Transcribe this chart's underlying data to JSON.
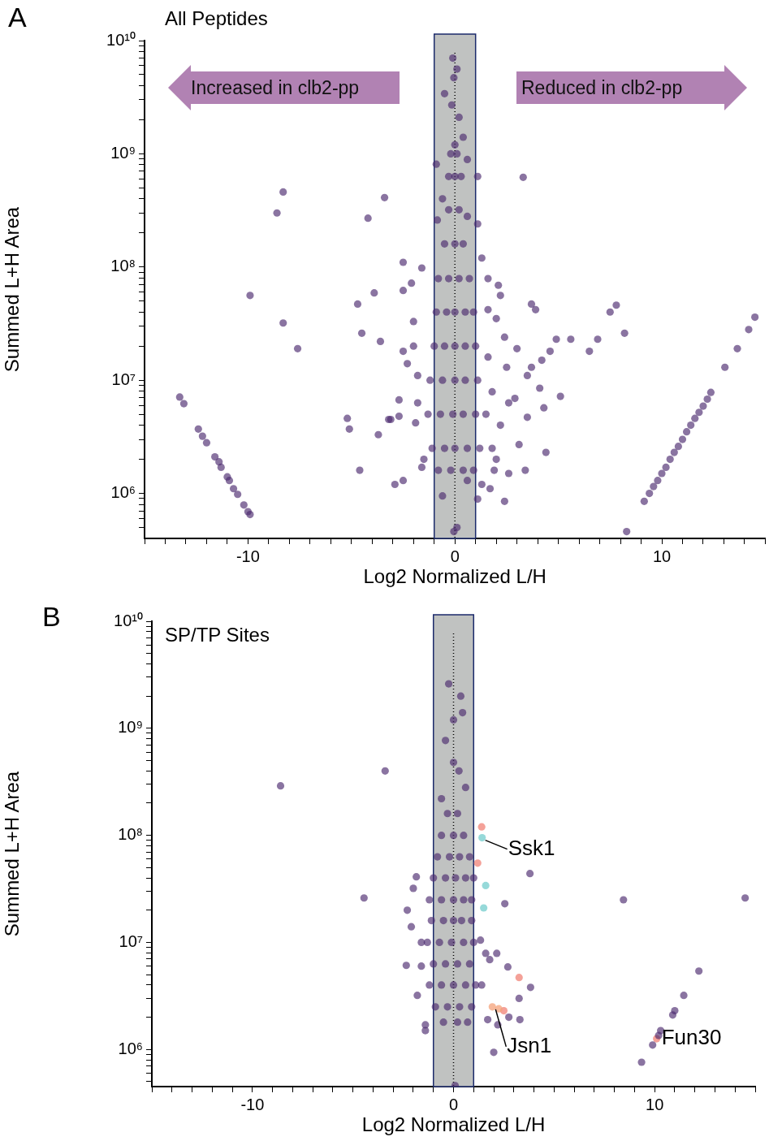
{
  "chart_data": [
    {
      "type": "scatter",
      "title": "All Peptides",
      "xlabel": "Log2 Normalized L/H",
      "ylabel": "Summed L+H Area",
      "log": "y",
      "marker": "circle",
      "annotations": [
        "A",
        "Increased in clb2-pp",
        "Reduced in clb2-pp"
      ],
      "xlim": [
        -15,
        15
      ],
      "ylim": [
        400000,
        10000000000
      ],
      "xticks": [
        {
          "value": -15,
          "label": null
        },
        {
          "value": -14,
          "label": null
        },
        {
          "value": -13,
          "label": null
        },
        {
          "value": -12,
          "label": null
        },
        {
          "value": -11,
          "label": null
        },
        -10,
        {
          "value": -9,
          "label": null
        },
        {
          "value": -8,
          "label": null
        },
        {
          "value": -7,
          "label": null
        },
        {
          "value": -6,
          "label": null
        },
        {
          "value": -5,
          "label": null
        },
        {
          "value": -4,
          "label": null
        },
        {
          "value": -3,
          "label": null
        },
        {
          "value": -2,
          "label": null
        },
        {
          "value": -1,
          "label": null
        },
        0,
        {
          "value": 1,
          "label": null
        },
        {
          "value": 2,
          "label": null
        },
        {
          "value": 3,
          "label": null
        },
        {
          "value": 4,
          "label": null
        },
        {
          "value": 5,
          "label": null
        },
        {
          "value": 6,
          "label": null
        },
        {
          "value": 7,
          "label": null
        },
        {
          "value": 8,
          "label": null
        },
        {
          "value": 9,
          "label": null
        },
        10,
        {
          "value": 11,
          "label": null
        },
        {
          "value": 12,
          "label": null
        },
        {
          "value": 13,
          "label": null
        },
        {
          "value": 14,
          "label": null
        },
        {
          "value": 15,
          "label": null
        }
      ],
      "yticks": [
        {
          "value": 500000.0,
          "label": null
        },
        {
          "value": 600000.0,
          "label": null
        },
        {
          "value": 700000.0,
          "label": null
        },
        {
          "value": 800000.0,
          "label": null
        },
        {
          "value": 900000.0,
          "label": null
        },
        {
          "value": 1000000.0,
          "label": "10⁶"
        },
        {
          "value": 2000000.0,
          "label": null
        },
        {
          "value": 3000000.0,
          "label": null
        },
        {
          "value": 4000000.0,
          "label": null
        },
        {
          "value": 5000000.0,
          "label": null
        },
        {
          "value": 6000000.0,
          "label": null
        },
        {
          "value": 7000000.0,
          "label": null
        },
        {
          "value": 8000000.0,
          "label": null
        },
        {
          "value": 9000000.0,
          "label": null
        },
        {
          "value": 10000000.0,
          "label": "10⁷"
        },
        {
          "value": 20000000.0,
          "label": null
        },
        {
          "value": 30000000.0,
          "label": null
        },
        {
          "value": 40000000.0,
          "label": null
        },
        {
          "value": 50000000.0,
          "label": null
        },
        {
          "value": 60000000.0,
          "label": null
        },
        {
          "value": 70000000.0,
          "label": null
        },
        {
          "value": 80000000.0,
          "label": null
        },
        {
          "value": 90000000.0,
          "label": null
        },
        {
          "value": 100000000.0,
          "label": "10⁸"
        },
        {
          "value": 200000000.0,
          "label": null
        },
        {
          "value": 300000000.0,
          "label": null
        },
        {
          "value": 400000000.0,
          "label": null
        },
        {
          "value": 500000000.0,
          "label": null
        },
        {
          "value": 600000000.0,
          "label": null
        },
        {
          "value": 700000000.0,
          "label": null
        },
        {
          "value": 800000000.0,
          "label": null
        },
        {
          "value": 900000000.0,
          "label": null
        },
        {
          "value": 1000000000.0,
          "label": "10⁹"
        },
        {
          "value": 2000000000.0,
          "label": null
        },
        {
          "value": 3000000000.0,
          "label": null
        },
        {
          "value": 4000000000.0,
          "label": null
        },
        {
          "value": 5000000000.0,
          "label": null
        },
        {
          "value": 6000000000.0,
          "label": null
        },
        {
          "value": 7000000000.0,
          "label": null
        },
        {
          "value": 8000000000.0,
          "label": null
        },
        {
          "value": 9000000000.0,
          "label": null
        },
        {
          "value": 10000000000.0,
          "label": "10¹⁰"
        }
      ],
      "bands": [
        {
          "axis": "x",
          "from": -1,
          "to": 1,
          "color": "#c0c2c1"
        }
      ],
      "ref_lines": [
        {
          "axis": "x",
          "value": 0,
          "color": "#000000",
          "line_style": "dotted"
        }
      ],
      "series": [
        {
          "color": "#4b2a6e",
          "x": [
            -13.3,
            -13.1,
            -12.4,
            -12.2,
            -12.0,
            -11.6,
            -11.4,
            -11.3,
            -11.0,
            -10.9,
            -10.7,
            -10.5,
            -10.2,
            -10.0,
            -9.9,
            -8.3,
            -8.6,
            -9.9,
            -8.3,
            -7.6,
            -3.4,
            -4.2,
            -2.5,
            -3.9,
            -4.7,
            -4.5,
            -3.6,
            -5.2,
            -5.1,
            -3.7,
            -4.6,
            -2.9,
            -2.5,
            -3.1,
            -2.7,
            9.15,
            9.4,
            9.6,
            9.8,
            10.0,
            10.2,
            10.4,
            10.6,
            10.8,
            11.0,
            11.2,
            11.4,
            11.6,
            11.8,
            12.0,
            12.2,
            12.37,
            13.05,
            13.65,
            14.2,
            14.5,
            8.3,
            8.2,
            7.8,
            7.5,
            6.9,
            6.5,
            5.6,
            4.9,
            4.6,
            4.2,
            3.7,
            3.5,
            5.1,
            4.3,
            4.1,
            3.3,
            3.7,
            3.9,
            3.0,
            4.4,
            3.4,
            2.4,
            2.1,
            -0.1,
            0.1,
            -0.05,
            -0.5,
            -0.15,
            0.2,
            0.4,
            0,
            0.6,
            -0.9,
            1.1,
            -0.6,
            0.6,
            1.1,
            -0.85,
            1.3,
            -1.6,
            -2.1,
            1.6,
            -2.5,
            2.2,
            1.6,
            -2.0,
            -2.5,
            -2.3,
            2.0,
            2.4,
            2.5,
            -1.8,
            -2.7,
            -3.2,
            -1.9,
            2.9,
            3.5,
            3.1,
            2.6,
            1.7,
            -1.6,
            -0.6,
            0.1,
            -0.05,
            0.6,
            1.1,
            1.9,
            1.3,
            -0.2,
            0.1,
            0,
            -0.3,
            0.3,
            -0.3,
            0.2,
            -0.5,
            0,
            0.4,
            -0.8,
            -0.3,
            0.2,
            0.7,
            -0.9,
            -0.4,
            0,
            0.5,
            0.9,
            -1.0,
            -0.5,
            0,
            0.5,
            1.0,
            -1.2,
            -0.6,
            0,
            0.5,
            1.1,
            -1.3,
            -0.7,
            -0.1,
            0.4,
            1.0,
            1.5,
            -1.1,
            -0.5,
            0,
            0.6,
            1.2,
            1.8,
            -0.8,
            -0.2,
            0.4,
            0.9,
            1.8,
            2.2,
            -1.8,
            -2.0,
            1.6,
            2.0,
            -1.5,
            2.6
          ],
          "values": [
            7100000.0,
            6200000.0,
            3700000.0,
            3200000.0,
            2800000.0,
            2100000.0,
            1900000.0,
            1700000.0,
            1400000.0,
            1300000.0,
            1100000.0,
            980000.0,
            790000.0,
            690000.0,
            650000.0,
            460000000.0,
            300000000.0,
            56000000.0,
            32000000.0,
            19000000.0,
            410000000.0,
            270000000.0,
            110000000.0,
            59000000.0,
            47000000.0,
            26000000.0,
            22000000.0,
            4600000.0,
            3700000.0,
            3300000.0,
            1600000.0,
            1200000.0,
            1300000.0,
            4500000.0,
            4800000.0,
            850000.0,
            1000000.0,
            1150000.0,
            1300000.0,
            1500000.0,
            1700000.0,
            2000000.0,
            2300000.0,
            2600000.0,
            3000000.0,
            3500000.0,
            4000000.0,
            4600000.0,
            5200000.0,
            5900000.0,
            6800000.0,
            7800000.0,
            13000000.0,
            19000000.0,
            28000000.0,
            36000000.0,
            460000.0,
            26000000.0,
            46000000.0,
            40000000.0,
            23000000.0,
            18000000.0,
            23000000.0,
            23000000.0,
            18000000.0,
            15000000.0,
            13000000.0,
            11000000.0,
            7200000.0,
            5700000.0,
            8500000.0,
            620000000.0,
            47000000.0,
            42000000.0,
            19000000.0,
            2300000.0,
            1600000.0,
            850000.0,
            69000000.0,
            7000000000.0,
            5600000000.0,
            4700000000.0,
            3400000000.0,
            2700000000.0,
            2100000000.0,
            1400000000.0,
            1200000000.0,
            890000000.0,
            810000000.0,
            630000000.0,
            400000000.0,
            280000000.0,
            240000000.0,
            260000000.0,
            120000000.0,
            98000000.0,
            72000000.0,
            79000000.0,
            62000000.0,
            56000000.0,
            42000000.0,
            33000000.0,
            18000000.0,
            14000000.0,
            35000000.0,
            24000000.0,
            13000000.0,
            11000000.0,
            6700000.0,
            4500000.0,
            4200000.0,
            6900000.0,
            4700000.0,
            2700000.0,
            1500000.0,
            1100000.0,
            1700000.0,
            950000.0,
            500000.0,
            460000.0,
            1300000.0,
            890000.0,
            1600000.0,
            1200000.0,
            1000000000.0,
            1000000000.0,
            630000000.0,
            630000000.0,
            630000000.0,
            320000000.0,
            320000000.0,
            160000000.0,
            160000000.0,
            160000000.0,
            79000000.0,
            79000000.0,
            79000000.0,
            79000000.0,
            40000000.0,
            40000000.0,
            40000000.0,
            40000000.0,
            40000000.0,
            20000000.0,
            20000000.0,
            20000000.0,
            20000000.0,
            20000000.0,
            10000000.0,
            10000000.0,
            10000000.0,
            10000000.0,
            10000000.0,
            5000000.0,
            5000000.0,
            5000000.0,
            5000000.0,
            5000000.0,
            5000000.0,
            2500000.0,
            2500000.0,
            2500000.0,
            2500000.0,
            2500000.0,
            2500000.0,
            1600000.0,
            1600000.0,
            1600000.0,
            1600000.0,
            7900000.0,
            4000000.0,
            6300000.0,
            20000000.0,
            16000000.0,
            2000000.0,
            2000000.0,
            6300000.0
          ]
        }
      ]
    },
    {
      "type": "scatter",
      "title": "SP/TP Sites",
      "xlabel": "Log2 Normalized L/H",
      "ylabel": "Summed L+H Area",
      "log": "y",
      "marker": "circle",
      "annotations": [
        "B",
        {
          "text": "Ssk1",
          "x": 1.42,
          "y": 95000000.0
        },
        {
          "text": "Jsn1",
          "x": 1.93,
          "y": 2500000.0
        },
        {
          "text": "Fun30",
          "x": 10.1,
          "y": 1260000.0
        }
      ],
      "xlim": [
        -15,
        15
      ],
      "ylim": [
        450000,
        10000000000
      ],
      "xticks": [
        {
          "value": -15,
          "label": null
        },
        {
          "value": -14,
          "label": null
        },
        {
          "value": -13,
          "label": null
        },
        {
          "value": -12,
          "label": null
        },
        {
          "value": -11,
          "label": null
        },
        -10,
        {
          "value": -9,
          "label": null
        },
        {
          "value": -8,
          "label": null
        },
        {
          "value": -7,
          "label": null
        },
        {
          "value": -6,
          "label": null
        },
        {
          "value": -5,
          "label": null
        },
        {
          "value": -4,
          "label": null
        },
        {
          "value": -3,
          "label": null
        },
        {
          "value": -2,
          "label": null
        },
        {
          "value": -1,
          "label": null
        },
        0,
        {
          "value": 1,
          "label": null
        },
        {
          "value": 2,
          "label": null
        },
        {
          "value": 3,
          "label": null
        },
        {
          "value": 4,
          "label": null
        },
        {
          "value": 5,
          "label": null
        },
        {
          "value": 6,
          "label": null
        },
        {
          "value": 7,
          "label": null
        },
        {
          "value": 8,
          "label": null
        },
        {
          "value": 9,
          "label": null
        },
        10,
        {
          "value": 11,
          "label": null
        },
        {
          "value": 12,
          "label": null
        },
        {
          "value": 13,
          "label": null
        },
        {
          "value": 14,
          "label": null
        },
        {
          "value": 15,
          "label": null
        }
      ],
      "yticks": [
        {
          "value": 500000.0,
          "label": null
        },
        {
          "value": 600000.0,
          "label": null
        },
        {
          "value": 700000.0,
          "label": null
        },
        {
          "value": 800000.0,
          "label": null
        },
        {
          "value": 900000.0,
          "label": null
        },
        {
          "value": 1000000.0,
          "label": "10⁶"
        },
        {
          "value": 2000000.0,
          "label": null
        },
        {
          "value": 3000000.0,
          "label": null
        },
        {
          "value": 4000000.0,
          "label": null
        },
        {
          "value": 5000000.0,
          "label": null
        },
        {
          "value": 6000000.0,
          "label": null
        },
        {
          "value": 7000000.0,
          "label": null
        },
        {
          "value": 8000000.0,
          "label": null
        },
        {
          "value": 9000000.0,
          "label": null
        },
        {
          "value": 10000000.0,
          "label": "10⁷"
        },
        {
          "value": 20000000.0,
          "label": null
        },
        {
          "value": 30000000.0,
          "label": null
        },
        {
          "value": 40000000.0,
          "label": null
        },
        {
          "value": 50000000.0,
          "label": null
        },
        {
          "value": 60000000.0,
          "label": null
        },
        {
          "value": 70000000.0,
          "label": null
        },
        {
          "value": 80000000.0,
          "label": null
        },
        {
          "value": 90000000.0,
          "label": null
        },
        {
          "value": 100000000.0,
          "label": "10⁸"
        },
        {
          "value": 200000000.0,
          "label": null
        },
        {
          "value": 300000000.0,
          "label": null
        },
        {
          "value": 400000000.0,
          "label": null
        },
        {
          "value": 500000000.0,
          "label": null
        },
        {
          "value": 600000000.0,
          "label": null
        },
        {
          "value": 700000000.0,
          "label": null
        },
        {
          "value": 800000000.0,
          "label": null
        },
        {
          "value": 900000000.0,
          "label": null
        },
        {
          "value": 1000000000.0,
          "label": "10⁹"
        },
        {
          "value": 2000000000.0,
          "label": null
        },
        {
          "value": 3000000000.0,
          "label": null
        },
        {
          "value": 4000000000.0,
          "label": null
        },
        {
          "value": 5000000000.0,
          "label": null
        },
        {
          "value": 6000000000.0,
          "label": null
        },
        {
          "value": 7000000000.0,
          "label": null
        },
        {
          "value": 8000000000.0,
          "label": null
        },
        {
          "value": 9000000000.0,
          "label": null
        },
        {
          "value": 10000000000.0,
          "label": "10¹⁰"
        }
      ],
      "bands": [
        {
          "axis": "x",
          "from": -1,
          "to": 1,
          "color": "#c0c2c1"
        }
      ],
      "ref_lines": [
        {
          "axis": "x",
          "value": 0,
          "color": "#000000",
          "line_style": "dotted"
        }
      ],
      "series": [
        {
          "color": "#4b2a6e",
          "x": [
            -8.6,
            -3.4,
            -4.45,
            -2.35,
            -1.4,
            -2.1,
            -1.85,
            -2.0,
            -1.6,
            -1.6,
            -0.24,
            0.36,
            0.45,
            0,
            -0.4,
            0,
            0.27,
            0.6,
            -0.6,
            3.8,
            2.55,
            8.45,
            14.5,
            12.2,
            11.45,
            11.0,
            10.9,
            10.3,
            10.2,
            9.9,
            9.35,
            2.0,
            3.83,
            2.7,
            2.15,
            1.8,
            3.26,
            3.3,
            2.75,
            1.7,
            2.2,
            0.08,
            -1.4,
            1.34,
            -0.3,
            0.2,
            -0.6,
            0,
            0.5,
            -0.8,
            -0.2,
            0.3,
            0.8,
            -1.0,
            -0.4,
            0.1,
            0.6,
            1.0,
            -1.2,
            -0.6,
            0,
            0.5,
            0.9,
            -1.1,
            -0.5,
            0,
            0.4,
            0.9,
            -1.3,
            -0.7,
            -0.1,
            0.5,
            1.0,
            -1.0,
            -0.4,
            0.2,
            0.8,
            -1.2,
            -0.6,
            0,
            0.6,
            1.1,
            -0.9,
            -0.3,
            0.3,
            0.9,
            -0.5,
            0.2,
            0.7,
            -2.3,
            -1.8,
            1.4,
            1.6
          ],
          "values": [
            290000000.0,
            400000000.0,
            26000000.0,
            6100000.0,
            1700000.0,
            14000000.0,
            41000000.0,
            32000000.0,
            10000000.0,
            6000000.0,
            2600000000.0,
            2000000000.0,
            1400000000.0,
            1200000000.0,
            770000000.0,
            480000000.0,
            400000000.0,
            280000000.0,
            220000000.0,
            44000000.0,
            23000000.0,
            25000000.0,
            26000000.0,
            5400000.0,
            3200000.0,
            2300000.0,
            2100000.0,
            1500000.0,
            1350000.0,
            1100000.0,
            760000.0,
            940000.0,
            3800000.0,
            5900000.0,
            7900000.0,
            6900000.0,
            3000000.0,
            1900000.0,
            2000000.0,
            1900000.0,
            1700000.0,
            460000.0,
            1500000.0,
            10500000.0,
            160000000.0,
            160000000.0,
            100000000.0,
            100000000.0,
            100000000.0,
            63000000.0,
            63000000.0,
            63000000.0,
            63000000.0,
            40000000.0,
            40000000.0,
            40000000.0,
            40000000.0,
            40000000.0,
            25000000.0,
            25000000.0,
            25000000.0,
            25000000.0,
            25000000.0,
            16000000.0,
            16000000.0,
            16000000.0,
            16000000.0,
            16000000.0,
            10000000.0,
            10000000.0,
            10000000.0,
            10000000.0,
            10000000.0,
            6300000.0,
            6300000.0,
            6300000.0,
            6300000.0,
            4000000.0,
            4000000.0,
            4000000.0,
            4000000.0,
            4000000.0,
            2500000.0,
            2500000.0,
            2500000.0,
            2500000.0,
            1800000.0,
            1800000.0,
            1800000.0,
            20000000.0,
            3200000.0,
            4000000.0,
            7900000.0
          ]
        },
        {
          "color": "#5ec4c4",
          "x": [
            1.42,
            1.6,
            1.5
          ],
          "values": [
            95000000.0,
            34000000.0,
            21000000.0
          ]
        },
        {
          "colors": [
            "#f08275",
            "#f08275",
            "#f08275",
            "#f08275",
            "#f08275",
            "#f4a27a",
            "#f4a27a"
          ],
          "x": [
            1.4,
            1.2,
            3.26,
            2.5,
            10.1,
            1.93,
            2.25
          ],
          "values": [
            120000000.0,
            55000000.0,
            4700000.0,
            2300000.0,
            1260000.0,
            2500000.0,
            2400000.0
          ]
        }
      ]
    }
  ]
}
